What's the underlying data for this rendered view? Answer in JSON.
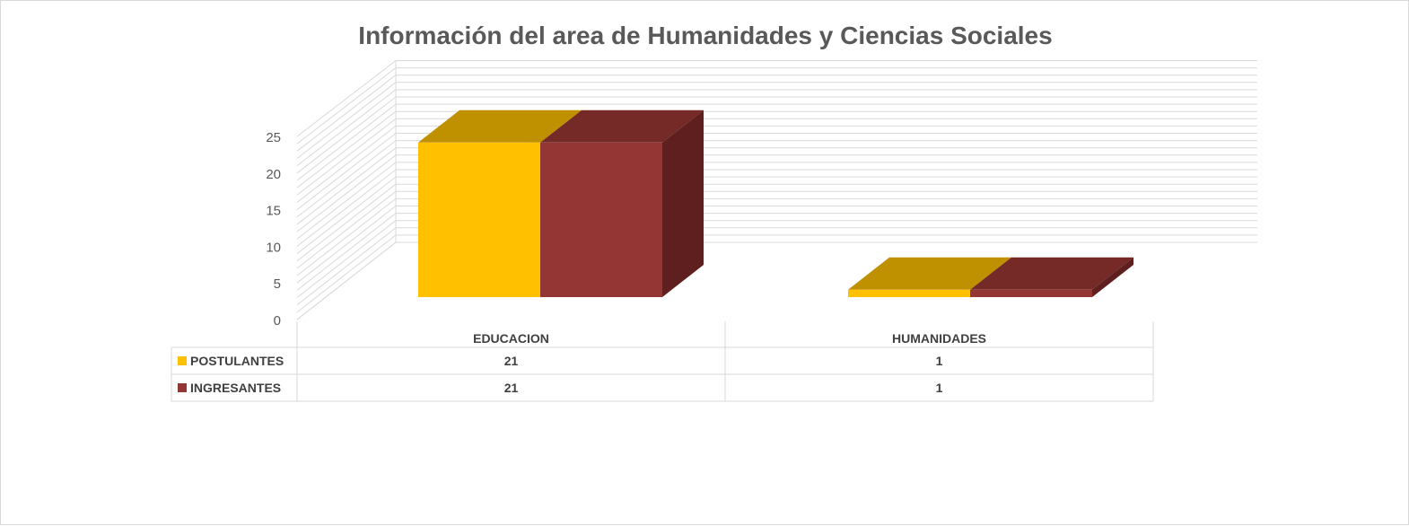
{
  "colors": {
    "postulantes_front": "#FFC000",
    "postulantes_top": "#BF9000",
    "ingresantes_front": "#943634",
    "ingresantes_top": "#752A28",
    "ingresantes_side": "#5E1F1E",
    "grid": "#d9d9d9",
    "text": "#595959"
  },
  "chart_data": {
    "type": "bar",
    "title": "Información del area de Humanidades y Ciencias Sociales",
    "categories": [
      "EDUCACION",
      "HUMANIDADES"
    ],
    "series": [
      {
        "name": "POSTULANTES",
        "values": [
          21,
          1
        ]
      },
      {
        "name": "INGRESANTES",
        "values": [
          21,
          1
        ]
      }
    ],
    "ylim": [
      0,
      25
    ],
    "yticks": [
      "0",
      "5",
      "10",
      "15",
      "20",
      "25"
    ],
    "data_table": true,
    "grid": true
  }
}
